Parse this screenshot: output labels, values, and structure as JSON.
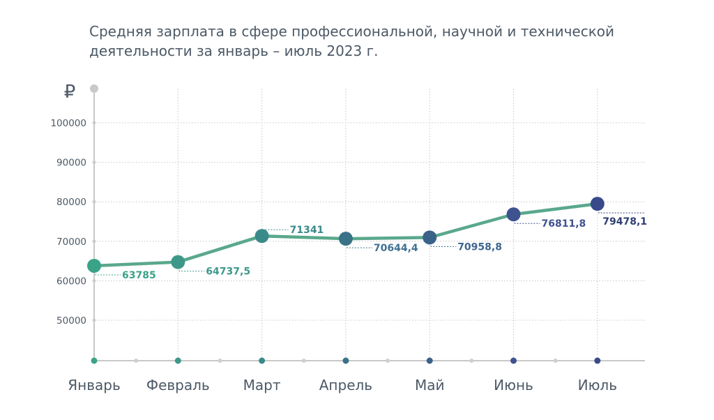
{
  "chart_data": {
    "type": "line",
    "title": "Средняя зарплата в сфере профессиональной, научной и технической деятельности за январь – июль 2023 г.",
    "ylabel": "₽",
    "xlabel": "",
    "categories": [
      "Январь",
      "Февраль",
      "Март",
      "Апрель",
      "Май",
      "Июнь",
      "Июль"
    ],
    "series": [
      {
        "name": "Средняя зарплата",
        "values": [
          63785,
          64737.5,
          71341,
          70644.4,
          70958.8,
          76811.8,
          79478.1
        ]
      }
    ],
    "value_labels": [
      "63785",
      "64737,5",
      "71341",
      "70644,4",
      "70958,8",
      "76811,8",
      "79478,1"
    ],
    "yticks": [
      50000,
      60000,
      70000,
      80000,
      90000,
      100000
    ],
    "ytick_labels": [
      "50000",
      "60000",
      "70000",
      "80000",
      "90000",
      "100000"
    ],
    "ylim": [
      40000,
      108500
    ],
    "grid": true,
    "colors": {
      "line": "#5aa88c",
      "points": [
        "#3aa387",
        "#3e988a",
        "#3b8a8a",
        "#3a7287",
        "#3b6288",
        "#3f5290",
        "#394a8a"
      ],
      "labels": [
        "#3aa387",
        "#3e988a",
        "#3b8a8a",
        "#3f7292",
        "#3d6690",
        "#3f5290",
        "#2f3e73"
      ],
      "axis": "#c8c8c8",
      "grid": "#c4c4c4",
      "text": "#4c5966"
    }
  }
}
